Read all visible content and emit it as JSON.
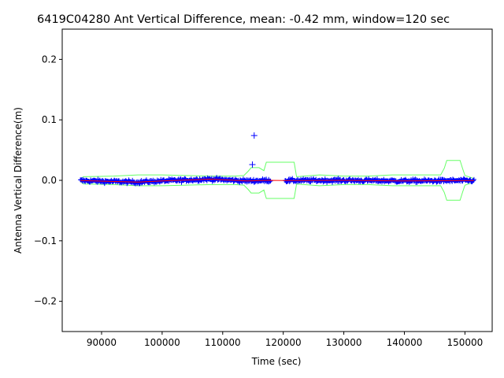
{
  "chart_data": {
    "type": "scatter",
    "title": "6419C04280 Ant Vertical Difference, mean: -0.42 mm, window=120 sec",
    "xlabel": "Time (sec)",
    "ylabel": "Antenna Vertical Difference(m)",
    "xlim": [
      83500,
      154500
    ],
    "ylim": [
      -0.25,
      0.25
    ],
    "xticks": [
      90000,
      100000,
      110000,
      120000,
      130000,
      140000,
      150000
    ],
    "yticks": [
      -0.2,
      -0.1,
      0.0,
      0.1,
      0.2
    ],
    "xtick_labels": [
      "90000",
      "100000",
      "110000",
      "120000",
      "130000",
      "140000",
      "150000"
    ],
    "ytick_labels": [
      "−0.2",
      "−0.1",
      "0.0",
      "0.1",
      "0.2"
    ],
    "grid": false,
    "colors": {
      "points": "#0000ff",
      "mean": "#ff0000",
      "envelope": "#66ff66"
    },
    "segments": [
      {
        "start": 86500,
        "end": 117900
      },
      {
        "start": 120300,
        "end": 151500
      }
    ],
    "outliers": [
      {
        "x": 115200,
        "y": 0.074
      },
      {
        "x": 114900,
        "y": 0.026
      }
    ],
    "envelope_upper": [
      [
        86500,
        0.002
      ],
      [
        87000,
        0.006
      ],
      [
        92000,
        0.007
      ],
      [
        96000,
        0.009
      ],
      [
        100000,
        0.009
      ],
      [
        104000,
        0.008
      ],
      [
        108000,
        0.007
      ],
      [
        112000,
        0.007
      ],
      [
        113500,
        0.008
      ],
      [
        114200,
        0.015
      ],
      [
        114700,
        0.021
      ],
      [
        116000,
        0.021
      ],
      [
        116800,
        0.016
      ],
      [
        117200,
        0.03
      ],
      [
        121800,
        0.03
      ],
      [
        122200,
        0.006
      ],
      [
        126000,
        0.009
      ],
      [
        130000,
        0.007
      ],
      [
        134000,
        0.007
      ],
      [
        138000,
        0.009
      ],
      [
        142000,
        0.009
      ],
      [
        146000,
        0.009
      ],
      [
        146600,
        0.02
      ],
      [
        147000,
        0.033
      ],
      [
        149200,
        0.033
      ],
      [
        149600,
        0.02
      ],
      [
        150000,
        0.008
      ],
      [
        151500,
        0.003
      ]
    ],
    "envelope_lower": [
      [
        86500,
        -0.002
      ],
      [
        87000,
        -0.006
      ],
      [
        92000,
        -0.007
      ],
      [
        96000,
        -0.009
      ],
      [
        100000,
        -0.009
      ],
      [
        104000,
        -0.008
      ],
      [
        108000,
        -0.007
      ],
      [
        112000,
        -0.007
      ],
      [
        113500,
        -0.008
      ],
      [
        114200,
        -0.015
      ],
      [
        114700,
        -0.021
      ],
      [
        116000,
        -0.021
      ],
      [
        116800,
        -0.016
      ],
      [
        117200,
        -0.03
      ],
      [
        121800,
        -0.03
      ],
      [
        122200,
        -0.006
      ],
      [
        126000,
        -0.009
      ],
      [
        130000,
        -0.007
      ],
      [
        134000,
        -0.007
      ],
      [
        138000,
        -0.009
      ],
      [
        142000,
        -0.009
      ],
      [
        146000,
        -0.009
      ],
      [
        146600,
        -0.02
      ],
      [
        147000,
        -0.033
      ],
      [
        149200,
        -0.033
      ],
      [
        149600,
        -0.02
      ],
      [
        150000,
        -0.008
      ],
      [
        151500,
        -0.003
      ]
    ],
    "mean_line": [
      [
        86500,
        -0.0004
      ],
      [
        96000,
        -0.003
      ],
      [
        100000,
        -0.001
      ],
      [
        108000,
        0.002
      ],
      [
        114000,
        -0.001
      ],
      [
        117900,
        0.0
      ],
      [
        120300,
        -0.0004
      ],
      [
        130000,
        0.0
      ],
      [
        140000,
        -0.001
      ],
      [
        151500,
        -0.0004
      ]
    ]
  }
}
